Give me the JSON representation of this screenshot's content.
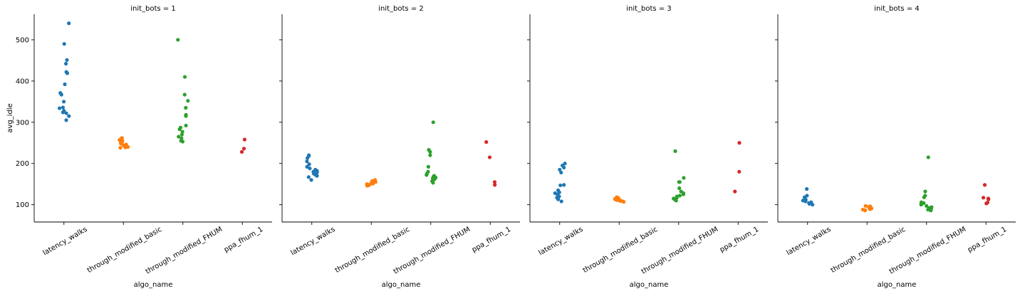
{
  "chart_data": [
    {
      "type": "strip",
      "title": "init_bots = 1",
      "x_label": "algo_name",
      "y_label": "avg_idle",
      "categories": [
        "latency_walks",
        "through_modified_basic",
        "through_modified_FHUM",
        "ppa_fhum_1"
      ],
      "colors": [
        "#1f77b4",
        "#ff7f0e",
        "#2ca02c",
        "#d62728"
      ],
      "values": [
        [
          540,
          490,
          451,
          442,
          422,
          419,
          392,
          371,
          367,
          350,
          336,
          334,
          328,
          324,
          322,
          315,
          305
        ],
        [
          262,
          260,
          258,
          257,
          255,
          252,
          250,
          248,
          246,
          244,
          242,
          241,
          240,
          240,
          239,
          238
        ],
        [
          500,
          410,
          367,
          352,
          335,
          318,
          315,
          292,
          287,
          283,
          277,
          270,
          265,
          261,
          255,
          253
        ],
        [
          258,
          236,
          228
        ]
      ],
      "ylim": [
        58,
        562
      ],
      "yticks": [
        100,
        200,
        300,
        400,
        500
      ]
    },
    {
      "type": "strip",
      "title": "init_bots = 2",
      "x_label": "algo_name",
      "categories": [
        "latency_walks",
        "through_modified_basic",
        "through_modified_FHUM",
        "ppa_fhum_1"
      ],
      "colors": [
        "#1f77b4",
        "#ff7f0e",
        "#2ca02c",
        "#d62728"
      ],
      "values": [
        [
          220,
          218,
          213,
          205,
          198,
          192,
          188,
          185,
          182,
          180,
          178,
          175,
          172,
          170,
          167,
          160
        ],
        [
          160,
          158,
          157,
          155,
          154,
          153,
          152,
          151,
          150,
          149,
          148,
          147,
          147,
          146
        ],
        [
          300,
          233,
          228,
          220,
          192,
          180,
          175,
          172,
          170,
          168,
          166,
          164,
          162,
          160,
          157,
          153
        ],
        [
          252,
          215,
          155,
          148
        ]
      ],
      "ylim": [
        58,
        562
      ],
      "yticks": [
        100,
        200,
        300,
        400,
        500
      ]
    },
    {
      "type": "strip",
      "title": "init_bots = 3",
      "x_label": "algo_name",
      "categories": [
        "latency_walks",
        "through_modified_basic",
        "through_modified_FHUM",
        "ppa_fhum_1"
      ],
      "colors": [
        "#1f77b4",
        "#ff7f0e",
        "#2ca02c",
        "#d62728"
      ],
      "values": [
        [
          200,
          195,
          190,
          185,
          178,
          148,
          147,
          135,
          130,
          128,
          125,
          122,
          120,
          117,
          113,
          108
        ],
        [
          118,
          117,
          116,
          115,
          114,
          113,
          112,
          111,
          110,
          110,
          109,
          108,
          107
        ],
        [
          230,
          165,
          155,
          155,
          140,
          132,
          128,
          125,
          122,
          120,
          117,
          115,
          112,
          110
        ],
        [
          250,
          180,
          132
        ]
      ],
      "ylim": [
        58,
        562
      ],
      "yticks": [
        100,
        200,
        300,
        400,
        500
      ]
    },
    {
      "type": "strip",
      "title": "init_bots = 4",
      "x_label": "algo_name",
      "categories": [
        "latency_walks",
        "through_modified_basic",
        "through_modified_FHUM",
        "ppa_fhum_1"
      ],
      "colors": [
        "#1f77b4",
        "#ff7f0e",
        "#2ca02c",
        "#d62728"
      ],
      "values": [
        [
          138,
          122,
          118,
          115,
          112,
          110,
          108,
          106,
          104,
          102,
          100
        ],
        [
          97,
          96,
          95,
          93,
          92,
          91,
          90,
          89,
          88,
          87,
          86
        ],
        [
          215,
          132,
          122,
          118,
          106,
          104,
          102,
          100,
          97,
          94,
          92,
          90,
          88,
          86
        ],
        [
          148,
          117,
          115,
          113,
          105,
          103
        ]
      ],
      "ylim": [
        58,
        562
      ],
      "yticks": [
        100,
        200,
        300,
        400,
        500
      ]
    }
  ]
}
